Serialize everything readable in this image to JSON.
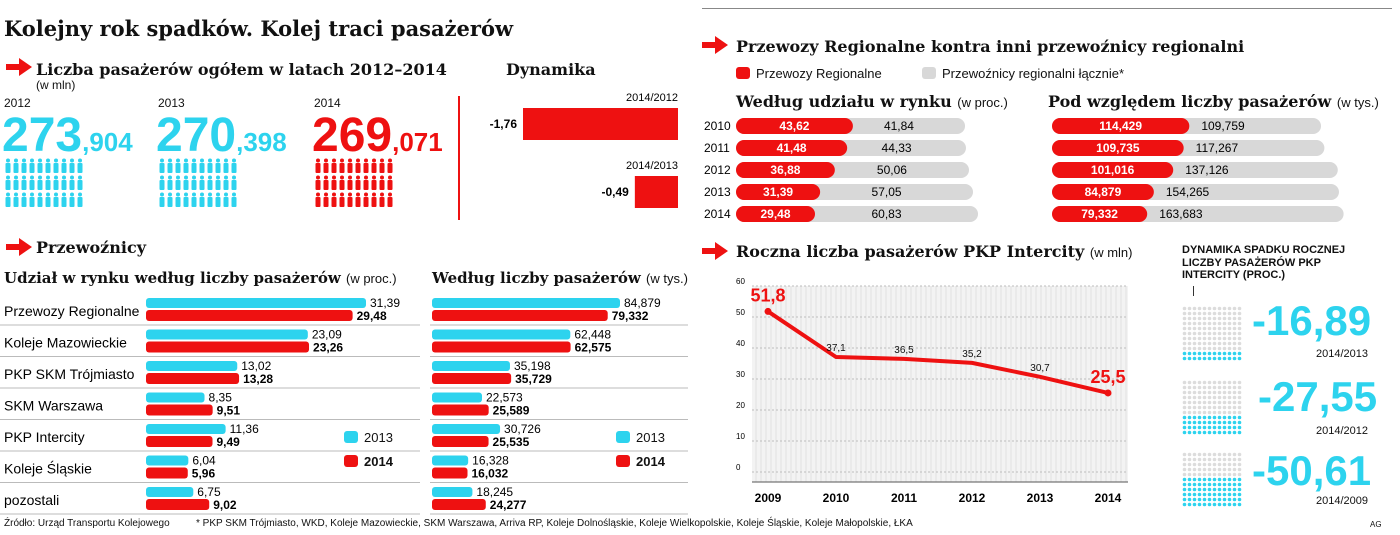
{
  "title": "Kolejny rok spadków. Kolej traci pasażerów",
  "colors": {
    "cyan": "#2dd3ee",
    "red": "#ee1111",
    "gray": "#d8d8d8",
    "grid": "#bdbdbd"
  },
  "total": {
    "title": "Liczba pasażerów ogółem w latach 2012–2014",
    "unit": "(w mln)",
    "items": [
      {
        "year": "2012",
        "int": "273",
        "dec": ",904"
      },
      {
        "year": "2013",
        "int": "270",
        "dec": ",398"
      },
      {
        "year": "2014",
        "int": "269",
        "dec": ",071"
      }
    ]
  },
  "dynamics": {
    "title": "Dynamika",
    "items": [
      {
        "label": "2014/2012",
        "value": "-1,76"
      },
      {
        "label": "2014/2013",
        "value": "-0,49"
      }
    ]
  },
  "regional": {
    "title": "Przewozy Regionalne kontra inni przewoźnicy regionalni",
    "legend_pr": "Przewozy Regionalne",
    "legend_other": "Przewoźnicy regionalni łącznie*",
    "share_title": "Według udziału w rynku",
    "share_unit": "(w proc.)",
    "pass_title": "Pod względem liczby pasażerów",
    "pass_unit": "(w tys.)"
  },
  "carriers": {
    "title": "Przewoźnicy",
    "share_title": "Udział w rynku według liczby pasażerów",
    "share_unit": "(w proc.)",
    "pass_title": "Według liczby pasażerów",
    "pass_unit": "(w tys.)",
    "legend_2013": "2013",
    "legend_2014": "2014"
  },
  "intercity": {
    "title": "Roczna liczba pasażerów PKP Intercity",
    "unit": "(w mln)",
    "dyn_title": "DYNAMIKA SPADKU ROCZNEJ LICZBY PASAŻERÓW PKP INTERCITY (PROC.)",
    "dyn": [
      {
        "value": "-16,89",
        "label": "2014/2013"
      },
      {
        "value": "-27,55",
        "label": "2014/2012"
      },
      {
        "value": "-50,61",
        "label": "2014/2009"
      }
    ]
  },
  "footer": {
    "source": "Źródło: Urząd Transportu Kolejowego",
    "note": "* PKP SKM Trójmiasto, WKD, Koleje Mazowieckie, SKM Warszawa, Arriva RP, Koleje Dolnośląskie, Koleje Wielkopolskie, Koleje Śląskie, Koleje Małopolskie, ŁKA",
    "credit": "AG"
  },
  "chart_data": [
    {
      "type": "bar",
      "title": "Dynamika",
      "categories": [
        "2014/2012",
        "2014/2013"
      ],
      "values": [
        -1.76,
        -0.49
      ],
      "value_labels": [
        "-1,76",
        "-0,49"
      ]
    },
    {
      "type": "bar",
      "title": "Według udziału w rynku",
      "categories": [
        "2010",
        "2011",
        "2012",
        "2013",
        "2014"
      ],
      "series": [
        {
          "name": "Przewozy Regionalne",
          "values": [
            43.62,
            41.48,
            36.88,
            31.39,
            29.48
          ],
          "labels": [
            "43,62",
            "41,48",
            "36,88",
            "31,39",
            "29,48"
          ]
        },
        {
          "name": "Przewoźnicy regionalni łącznie*",
          "values": [
            41.84,
            44.33,
            50.06,
            57.05,
            60.83
          ],
          "labels": [
            "41,84",
            "44,33",
            "50,06",
            "57,05",
            "60,83"
          ]
        }
      ]
    },
    {
      "type": "bar",
      "title": "Pod względem liczby pasażerów",
      "categories": [
        "2010",
        "2011",
        "2012",
        "2013",
        "2014"
      ],
      "series": [
        {
          "name": "Przewozy Regionalne",
          "values": [
            114.429,
            109.735,
            101.016,
            84.879,
            79.332
          ],
          "labels": [
            "114,429",
            "109,735",
            "101,016",
            "84,879",
            "79,332"
          ]
        },
        {
          "name": "Przewoźnicy regionalni łącznie*",
          "values": [
            109.759,
            117.267,
            137.126,
            154.265,
            163.683
          ],
          "labels": [
            "109,759",
            "117,267",
            "137,126",
            "154,265",
            "163,683"
          ]
        }
      ]
    },
    {
      "type": "bar",
      "title": "Udział w rynku według liczby pasażerów",
      "categories": [
        "Przewozy Regionalne",
        "Koleje Mazowieckie",
        "PKP SKM Trójmiasto",
        "SKM Warszawa",
        "PKP Intercity",
        "Koleje Śląskie",
        "pozostali"
      ],
      "series": [
        {
          "name": "2013",
          "values": [
            31.39,
            23.09,
            13.02,
            8.35,
            11.36,
            6.04,
            6.75
          ],
          "labels": [
            "31,39",
            "23,09",
            "13,02",
            "8,35",
            "11,36",
            "6,04",
            "6,75"
          ]
        },
        {
          "name": "2014",
          "values": [
            29.48,
            23.26,
            13.28,
            9.51,
            9.49,
            5.96,
            9.02
          ],
          "labels": [
            "29,48",
            "23,26",
            "13,28",
            "9,51",
            "9,49",
            "5,96",
            "9,02"
          ]
        }
      ]
    },
    {
      "type": "bar",
      "title": "Według liczby pasażerów",
      "categories": [
        "Przewozy Regionalne",
        "Koleje Mazowieckie",
        "PKP SKM Trójmiasto",
        "SKM Warszawa",
        "PKP Intercity",
        "Koleje Śląskie",
        "pozostali"
      ],
      "series": [
        {
          "name": "2013",
          "values": [
            84.879,
            62.448,
            35.198,
            22.573,
            30.726,
            16.328,
            18.245
          ],
          "labels": [
            "84,879",
            "62,448",
            "35,198",
            "22,573",
            "30,726",
            "16,328",
            "18,245"
          ]
        },
        {
          "name": "2014",
          "values": [
            79.332,
            62.575,
            35.729,
            25.589,
            25.535,
            16.032,
            24.277
          ],
          "labels": [
            "79,332",
            "62,575",
            "35,729",
            "25,589",
            "25,535",
            "16,032",
            "24,277"
          ]
        }
      ]
    },
    {
      "type": "line",
      "title": "Roczna liczba pasażerów PKP Intercity",
      "x": [
        "2009",
        "2010",
        "2011",
        "2012",
        "2013",
        "2014"
      ],
      "y": [
        51.8,
        37.1,
        36.5,
        35.2,
        30.7,
        25.5
      ],
      "labels": [
        "51,8",
        "37,1",
        "36,5",
        "35,2",
        "30,7",
        "25,5"
      ],
      "ylim": [
        0,
        60
      ],
      "yticks": [
        "0",
        "10",
        "20",
        "30",
        "40",
        "50",
        "60"
      ],
      "grid": true
    }
  ]
}
